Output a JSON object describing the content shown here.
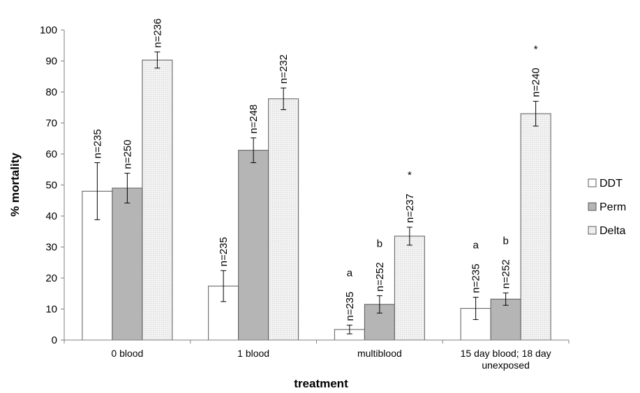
{
  "chart_data": {
    "type": "bar",
    "xlabel": "treatment",
    "ylabel": "% mortality",
    "ylim": [
      0,
      100
    ],
    "yticks": [
      0,
      10,
      20,
      30,
      40,
      50,
      60,
      70,
      80,
      90,
      100
    ],
    "grid": false,
    "legend_position": "right",
    "categories": [
      "0 blood",
      "1 blood",
      "multiblood",
      "15 day blood; 18 day unexposed"
    ],
    "category_lines": [
      [
        "0 blood"
      ],
      [
        "1 blood"
      ],
      [
        "multiblood"
      ],
      [
        "15 day blood; 18 day",
        "unexposed"
      ]
    ],
    "series": [
      {
        "name": "DDT",
        "color": "#ffffff",
        "values": [
          48,
          17.4,
          3.4,
          10.2
        ],
        "error": [
          9.2,
          5,
          1.4,
          3.6
        ],
        "n_labels": [
          "n=235",
          "n=235",
          "n=235",
          "n=235"
        ],
        "sig_labels": [
          "",
          "",
          "a",
          "a"
        ]
      },
      {
        "name": "Perm",
        "color": "#b5b5b5",
        "values": [
          49,
          61.2,
          11.5,
          13.2
        ],
        "error": [
          4.8,
          4,
          2.8,
          2
        ],
        "n_labels": [
          "n=250",
          "n=248",
          "n=252",
          "n=252"
        ],
        "sig_labels": [
          "",
          "",
          "b",
          "b"
        ]
      },
      {
        "name": "Delta",
        "color": "#ececec",
        "values": [
          90.3,
          77.8,
          33.5,
          73
        ],
        "error": [
          2.6,
          3.5,
          2.9,
          4
        ],
        "n_labels": [
          "n=236",
          "n=232",
          "n=237",
          "n=240"
        ],
        "sig_labels": [
          "",
          "",
          "*",
          "*"
        ]
      }
    ]
  }
}
